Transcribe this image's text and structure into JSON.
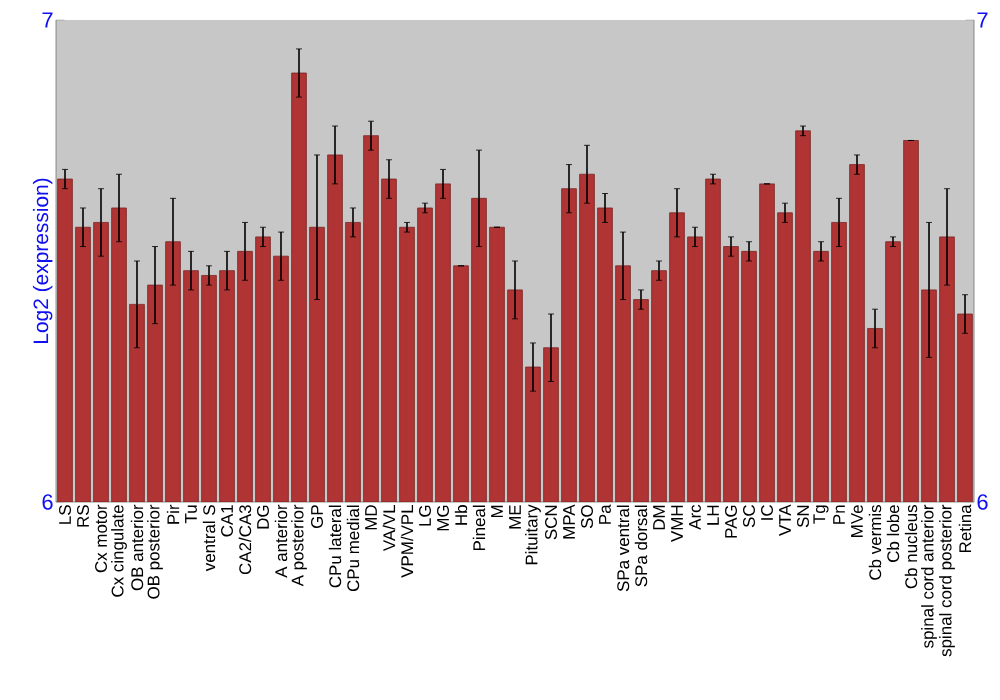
{
  "chart_data": {
    "type": "bar",
    "ylabel": "Log2 (expression)",
    "categories": [
      "LS",
      "RS",
      "Cx motor",
      "Cx cingulate",
      "OB anterior",
      "OB posterior",
      "Pir",
      "Tu",
      "ventral S",
      "CA1",
      "CA2/CA3",
      "DG",
      "A anterior",
      "A posterior",
      "GP",
      "CPu lateral",
      "CPu medial",
      "MD",
      "VA/VL",
      "VPM/VPL",
      "LG",
      "MG",
      "Hb",
      "Pineal",
      "M",
      "ME",
      "Pituitary",
      "SCN",
      "MPA",
      "SO",
      "Pa",
      "SPa ventral",
      "SPa dorsal",
      "DM",
      "VMH",
      "Arc",
      "LH",
      "PAG",
      "SC",
      "IC",
      "VTA",
      "SN",
      "Tg",
      "Pn",
      "MVe",
      "Cb vermis",
      "Cb lobe",
      "Cb nucleus",
      "spinal cord anterior",
      "spinal cord posterior",
      "Retina"
    ],
    "values": [
      6.67,
      6.57,
      6.58,
      6.61,
      6.41,
      6.45,
      6.54,
      6.48,
      6.47,
      6.48,
      6.52,
      6.55,
      6.51,
      6.89,
      6.57,
      6.72,
      6.58,
      6.76,
      6.67,
      6.57,
      6.61,
      6.66,
      6.49,
      6.63,
      6.57,
      6.44,
      6.28,
      6.32,
      6.65,
      6.68,
      6.61,
      6.49,
      6.42,
      6.48,
      6.6,
      6.55,
      6.67,
      6.53,
      6.52,
      6.66,
      6.6,
      6.77,
      6.52,
      6.58,
      6.7,
      6.36,
      6.54,
      6.75,
      6.44,
      6.55,
      6.39
    ],
    "errors": [
      0.02,
      0.04,
      0.07,
      0.07,
      0.09,
      0.08,
      0.09,
      0.04,
      0.02,
      0.04,
      0.06,
      0.02,
      0.05,
      0.05,
      0.15,
      0.06,
      0.03,
      0.03,
      0.04,
      0.01,
      0.01,
      0.03,
      0.0,
      0.1,
      0.0,
      0.06,
      0.05,
      0.07,
      0.05,
      0.06,
      0.03,
      0.07,
      0.02,
      0.02,
      0.05,
      0.02,
      0.01,
      0.02,
      0.02,
      0.0,
      0.02,
      0.01,
      0.02,
      0.05,
      0.02,
      0.04,
      0.01,
      0.0,
      0.14,
      0.1,
      0.04
    ],
    "color": "#b03434",
    "ylim": [
      6,
      7
    ],
    "yticks": [
      6,
      7
    ],
    "y2lim": [
      6,
      7
    ],
    "y2ticks": [
      6,
      7
    ]
  }
}
